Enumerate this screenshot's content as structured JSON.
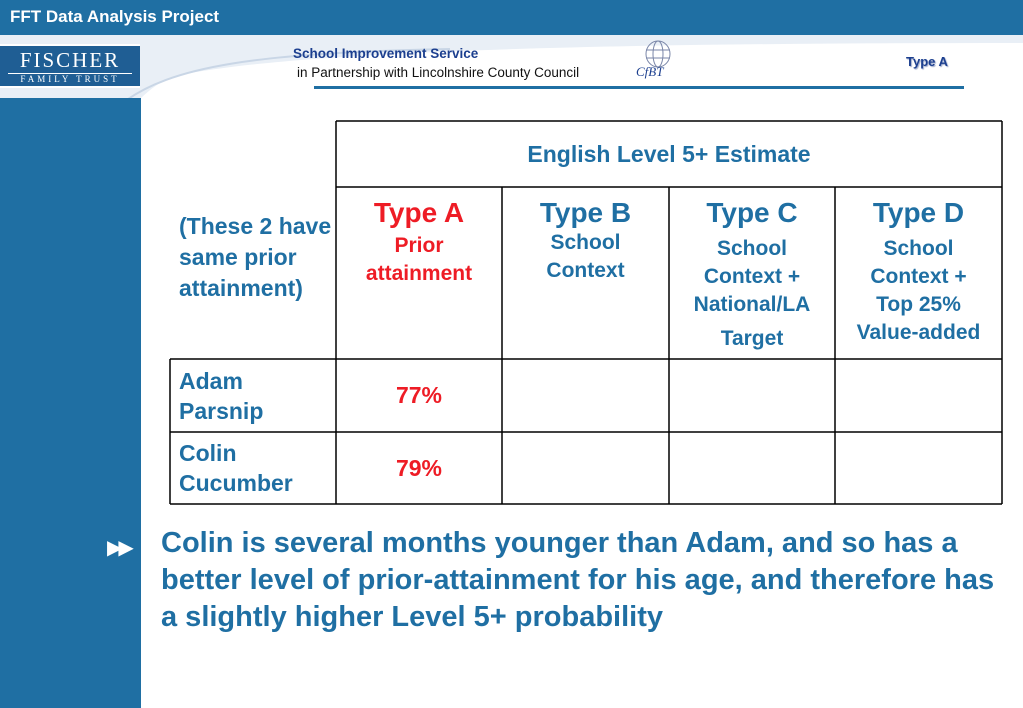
{
  "header": {
    "bar_title": "FFT Data Analysis Project",
    "logo_line1": "FISCHER",
    "logo_line2": "FAMILY TRUST",
    "service_title": "School Improvement Service",
    "service_subtitle": "in Partnership with Lincolnshire County Council",
    "partner_logo_text": "CfBT",
    "slide_tag": "Type A"
  },
  "table": {
    "header": "English Level 5+ Estimate",
    "note": "(These 2 have same prior attainment)",
    "columns": [
      {
        "title": "Type A",
        "desc_lines": [
          "Prior",
          "attainment"
        ]
      },
      {
        "title": "Type B",
        "desc_lines": [
          "School",
          "Context"
        ]
      },
      {
        "title": "Type C",
        "desc_lines": [
          "School",
          "Context +",
          "National/LA",
          "Target"
        ]
      },
      {
        "title": "Type D",
        "desc_lines": [
          "School",
          "Context +",
          "Top 25%",
          "Value-added"
        ]
      }
    ],
    "rows": [
      {
        "name_lines": [
          "Adam",
          "Parsnip"
        ],
        "type_a": "77%"
      },
      {
        "name_lines": [
          "Colin",
          "Cucumber"
        ],
        "type_a": "79%"
      }
    ]
  },
  "body": {
    "text": "Colin is several months younger than Adam, and so has a better level of prior-attainment for his age, and therefore has a slightly higher Level 5+ probability"
  },
  "colors": {
    "primary_blue": "#1f6fa3",
    "accent_red": "#ee1c25",
    "navy": "#1c3f8f"
  }
}
